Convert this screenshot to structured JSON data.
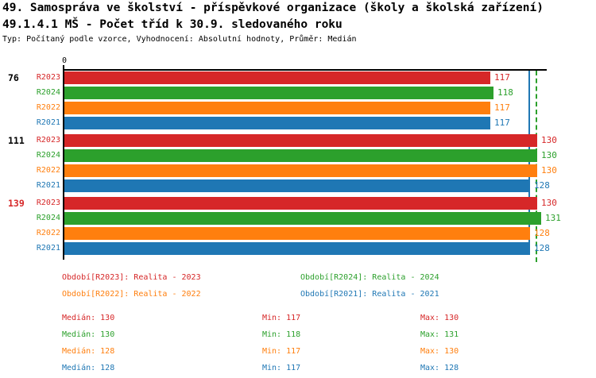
{
  "header": {
    "title_line1": "49. Samospráva ve školství - příspěvkové organizace (školy a školská zařízení)",
    "title_line2": "49.1.4.1 MŠ - Počet tříd k 30.9. sledovaného roku",
    "subtitle": "Typ: Počítaný podle vzorce, Vyhodnocení: Absolutní hodnoty, Průměr: Medián"
  },
  "colors": {
    "R2023": "#d62728",
    "R2024": "#2ca02c",
    "R2022": "#ff7f0e",
    "R2021": "#1f77b4",
    "axis": "#000000",
    "highlight_group_label": "#d62728",
    "default_group_label": "#000000"
  },
  "chart_data": {
    "type": "bar",
    "orientation": "horizontal",
    "title": "49.1.4.1 MŠ - Počet tříd k 30.9. sledovaného roku",
    "x_axis": {
      "origin_label": "0",
      "min": 0,
      "max": 132,
      "grid": false
    },
    "series_order": [
      "R2023",
      "R2024",
      "R2022",
      "R2021"
    ],
    "groups": [
      {
        "label": "76",
        "label_color": "#000000",
        "values": {
          "R2023": 117,
          "R2024": 118,
          "R2022": 117,
          "R2021": 117
        }
      },
      {
        "label": "111",
        "label_color": "#000000",
        "values": {
          "R2023": 130,
          "R2024": 130,
          "R2022": 130,
          "R2021": 128
        }
      },
      {
        "label": "139",
        "label_color": "#d62728",
        "values": {
          "R2023": 130,
          "R2024": 131,
          "R2022": 128,
          "R2021": 128
        }
      }
    ],
    "median_lines": [
      {
        "value": 128,
        "color": "#1f77b4",
        "style": "solid"
      },
      {
        "value": 130,
        "color": "#2ca02c",
        "style": "dashed"
      }
    ]
  },
  "legend": {
    "items": [
      {
        "label": "Období[R2023]: Realita - 2023",
        "color": "#d62728",
        "row": 0,
        "col": 0
      },
      {
        "label": "Období[R2024]: Realita - 2024",
        "color": "#2ca02c",
        "row": 0,
        "col": 1
      },
      {
        "label": "Období[R2022]: Realita - 2022",
        "color": "#ff7f0e",
        "row": 1,
        "col": 0
      },
      {
        "label": "Období[R2021]: Realita - 2021",
        "color": "#1f77b4",
        "row": 1,
        "col": 1
      }
    ]
  },
  "stats": {
    "labels": {
      "median": "Medián:",
      "min": "Min:",
      "max": "Max:"
    },
    "rows": [
      {
        "series": "R2023",
        "color": "#d62728",
        "median": "130",
        "min": "117",
        "max": "130"
      },
      {
        "series": "R2024",
        "color": "#2ca02c",
        "median": "130",
        "min": "118",
        "max": "131"
      },
      {
        "series": "R2022",
        "color": "#ff7f0e",
        "median": "128",
        "min": "117",
        "max": "130"
      },
      {
        "series": "R2021",
        "color": "#1f77b4",
        "median": "128",
        "min": "117",
        "max": "128"
      }
    ]
  }
}
